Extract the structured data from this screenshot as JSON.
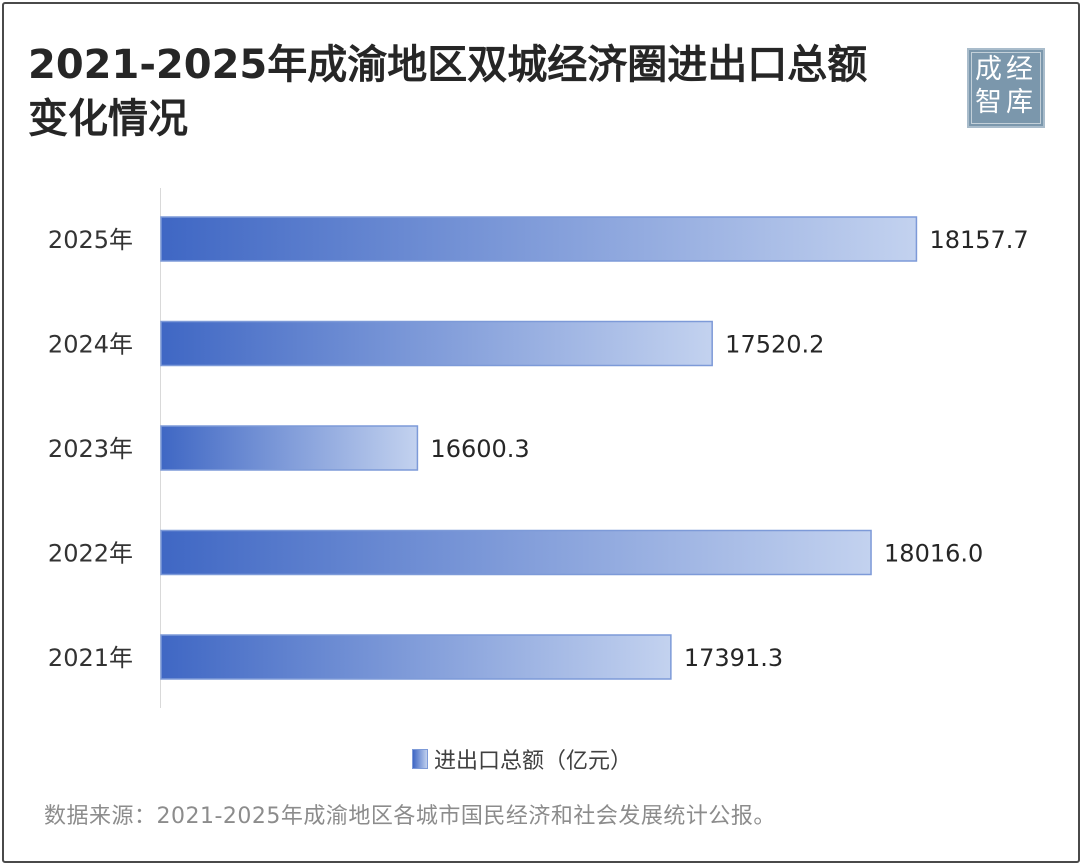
{
  "header": {
    "title_line1": "2021-2025年成渝地区双城经济圈进出口总额",
    "title_line2": "变化情况"
  },
  "stamp": {
    "chars": [
      "成",
      "经",
      "智",
      "库"
    ]
  },
  "chart_data": {
    "type": "bar",
    "orientation": "horizontal",
    "title": "2021-2025年成渝地区双城经济圈进出口总额变化情况",
    "xlabel": "",
    "ylabel": "",
    "categories": [
      "2025年",
      "2024年",
      "2023年",
      "2022年",
      "2021年"
    ],
    "series": [
      {
        "name": "进出口总额（亿元）",
        "values": [
          18157.7,
          17520.2,
          16600.3,
          18016.0,
          17391.3
        ],
        "labels": [
          "18157.7",
          "17520.2",
          "16600.3",
          "18016.0",
          "17391.3"
        ]
      }
    ],
    "xlim": [
      15800,
      18200
    ],
    "grid": false,
    "legend": "bottom-center",
    "colors": {
      "bar_start": "#3f67c4",
      "bar_end": "#c3d2ef",
      "bar_border": "#7d9ad8"
    }
  },
  "footer": {
    "source": "数据来源：2021-2025年成渝地区各城市国民经济和社会发展统计公报。"
  }
}
